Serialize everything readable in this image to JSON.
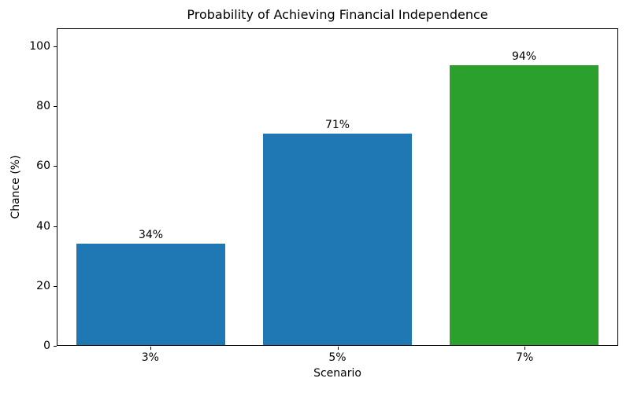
{
  "chart_data": {
    "type": "bar",
    "title": "Probability of Achieving Financial Independence",
    "xlabel": "Scenario",
    "ylabel": "Chance (%)",
    "categories": [
      "3%",
      "5%",
      "7%"
    ],
    "values": [
      34,
      71,
      94
    ],
    "bar_labels": [
      "34%",
      "71%",
      "94%"
    ],
    "bar_colors": [
      "#1f77b4",
      "#1f77b4",
      "#2ca02c"
    ],
    "yticks": [
      0,
      20,
      40,
      60,
      80,
      100
    ],
    "ylim": [
      0,
      106
    ],
    "grid": "off",
    "legend": "none",
    "background_color": "#ffffff",
    "axis_color": "#000000"
  }
}
